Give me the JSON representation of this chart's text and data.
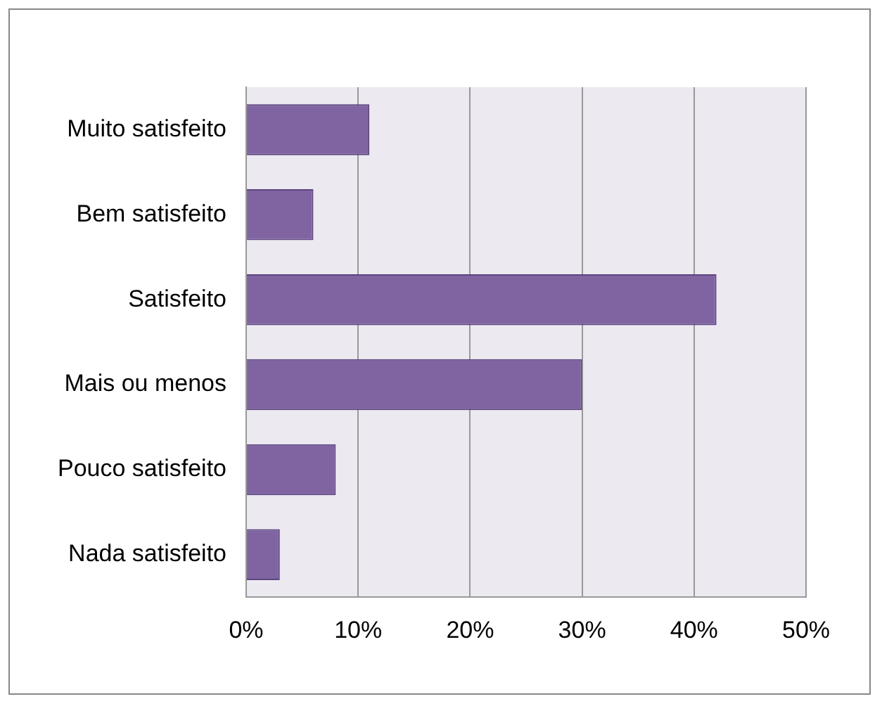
{
  "chart_data": {
    "type": "bar",
    "orientation": "horizontal",
    "categories": [
      "Muito satisfeito",
      "Bem satisfeito",
      "Satisfeito",
      "Mais ou menos",
      "Pouco satisfeito",
      "Nada satisfeito"
    ],
    "values": [
      11,
      6,
      42,
      30,
      8,
      3
    ],
    "color": "#8064a2",
    "xlim": [
      0,
      50
    ],
    "xticks": [
      {
        "value": 0,
        "label": "0%"
      },
      {
        "value": 10,
        "label": "10%"
      },
      {
        "value": 20,
        "label": "20%"
      },
      {
        "value": 30,
        "label": "30%"
      },
      {
        "value": 40,
        "label": "40%"
      },
      {
        "value": 50,
        "label": "50%"
      }
    ],
    "grid": "x",
    "legend": false
  }
}
